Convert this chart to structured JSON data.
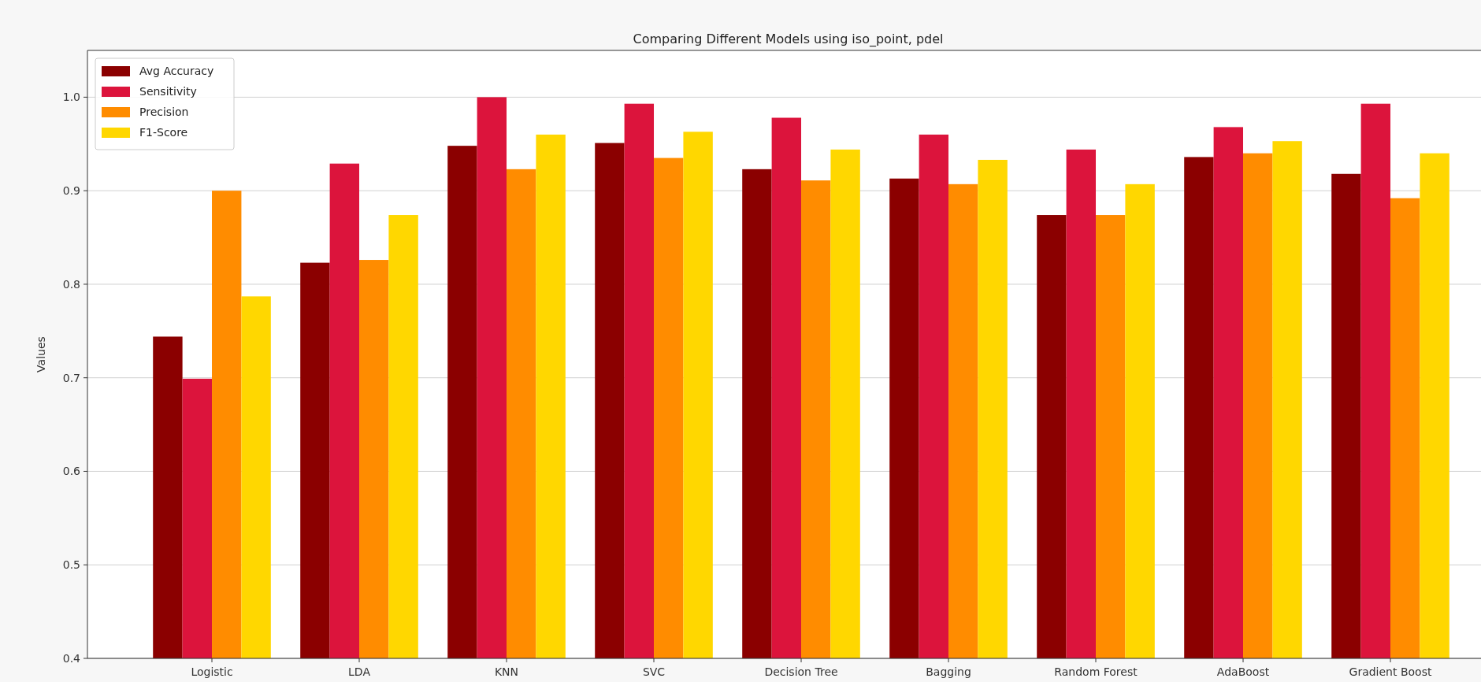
{
  "chart_data": {
    "type": "bar",
    "title": "Comparing Different Models using iso_point, pdel",
    "ylabel": "Values",
    "categories": [
      "Logistic",
      "LDA",
      "KNN",
      "SVC",
      "Decision Tree",
      "Bagging",
      "Random Forest",
      "AdaBoost",
      "Gradient Boost"
    ],
    "series": [
      {
        "name": "Avg Accuracy",
        "color": "#8b0000",
        "values": [
          0.744,
          0.823,
          0.948,
          0.951,
          0.923,
          0.913,
          0.874,
          0.936,
          0.918
        ]
      },
      {
        "name": "Sensitivity",
        "color": "#dc143c",
        "values": [
          0.699,
          0.929,
          1.0,
          0.993,
          0.978,
          0.96,
          0.944,
          0.968,
          0.993
        ]
      },
      {
        "name": "Precision",
        "color": "#ff8c00",
        "values": [
          0.9,
          0.826,
          0.923,
          0.935,
          0.911,
          0.907,
          0.874,
          0.94,
          0.892
        ]
      },
      {
        "name": "F1-Score",
        "color": "#ffd700",
        "values": [
          0.787,
          0.874,
          0.96,
          0.963,
          0.944,
          0.933,
          0.907,
          0.953,
          0.94
        ]
      }
    ],
    "ylim": [
      0.4,
      1.05
    ],
    "yticks": [
      0.4,
      0.5,
      0.6,
      0.7,
      0.8,
      0.9,
      {
        "value": 1,
        "label": "1.0"
      }
    ],
    "grid": "y",
    "legend": "top left"
  }
}
